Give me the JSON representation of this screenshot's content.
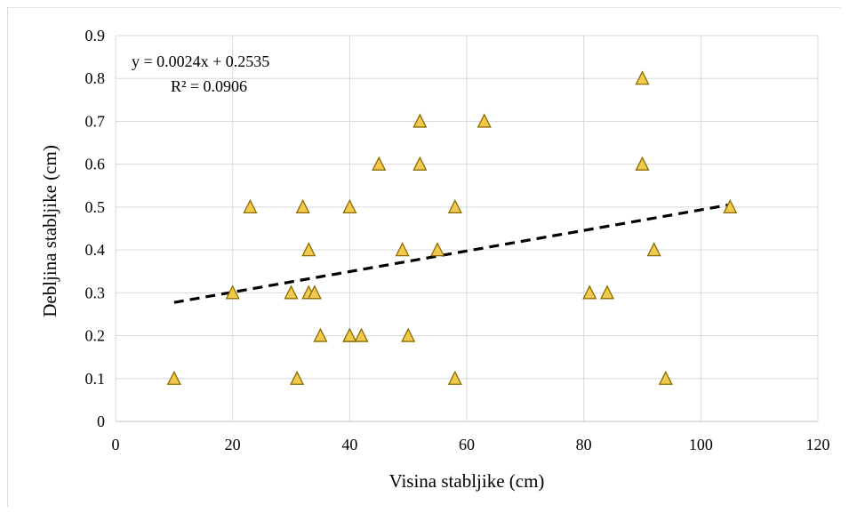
{
  "chart_data": {
    "type": "scatter",
    "xlabel": "Visina stabljike (cm)",
    "ylabel": "Debljina stabljike (cm)",
    "xlim": [
      0,
      120
    ],
    "ylim": [
      0,
      0.9
    ],
    "xticks": [
      "0",
      "20",
      "40",
      "60",
      "80",
      "100",
      "120"
    ],
    "yticks": [
      "0",
      "0.1",
      "0.2",
      "0.3",
      "0.4",
      "0.5",
      "0.6",
      "0.7",
      "0.8",
      "0.9"
    ],
    "grid": true,
    "marker": "triangle",
    "marker_color": "#f2c94c",
    "marker_edge": "#8a6d00",
    "series": [
      {
        "x": [
          10,
          20,
          23,
          30,
          31,
          32,
          33,
          33,
          34,
          35,
          40,
          40,
          40,
          42,
          45,
          49,
          50,
          52,
          52,
          55,
          58,
          58,
          63,
          81,
          84,
          90,
          90,
          92,
          94,
          105
        ],
        "y": [
          0.1,
          0.3,
          0.5,
          0.3,
          0.1,
          0.5,
          0.4,
          0.3,
          0.3,
          0.2,
          0.5,
          0.2,
          0.2,
          0.2,
          0.6,
          0.4,
          0.2,
          0.7,
          0.6,
          0.4,
          0.5,
          0.1,
          0.7,
          0.3,
          0.3,
          0.8,
          0.6,
          0.4,
          0.1,
          0.5
        ]
      }
    ],
    "trendline": {
      "slope": 0.0024,
      "intercept": 0.2535,
      "x_range": [
        10,
        105
      ],
      "style": "dashed",
      "color": "#000000"
    },
    "annotations": {
      "equation": "y = 0.0024x  + 0.2535",
      "r_squared": "R² = 0.0906"
    }
  }
}
